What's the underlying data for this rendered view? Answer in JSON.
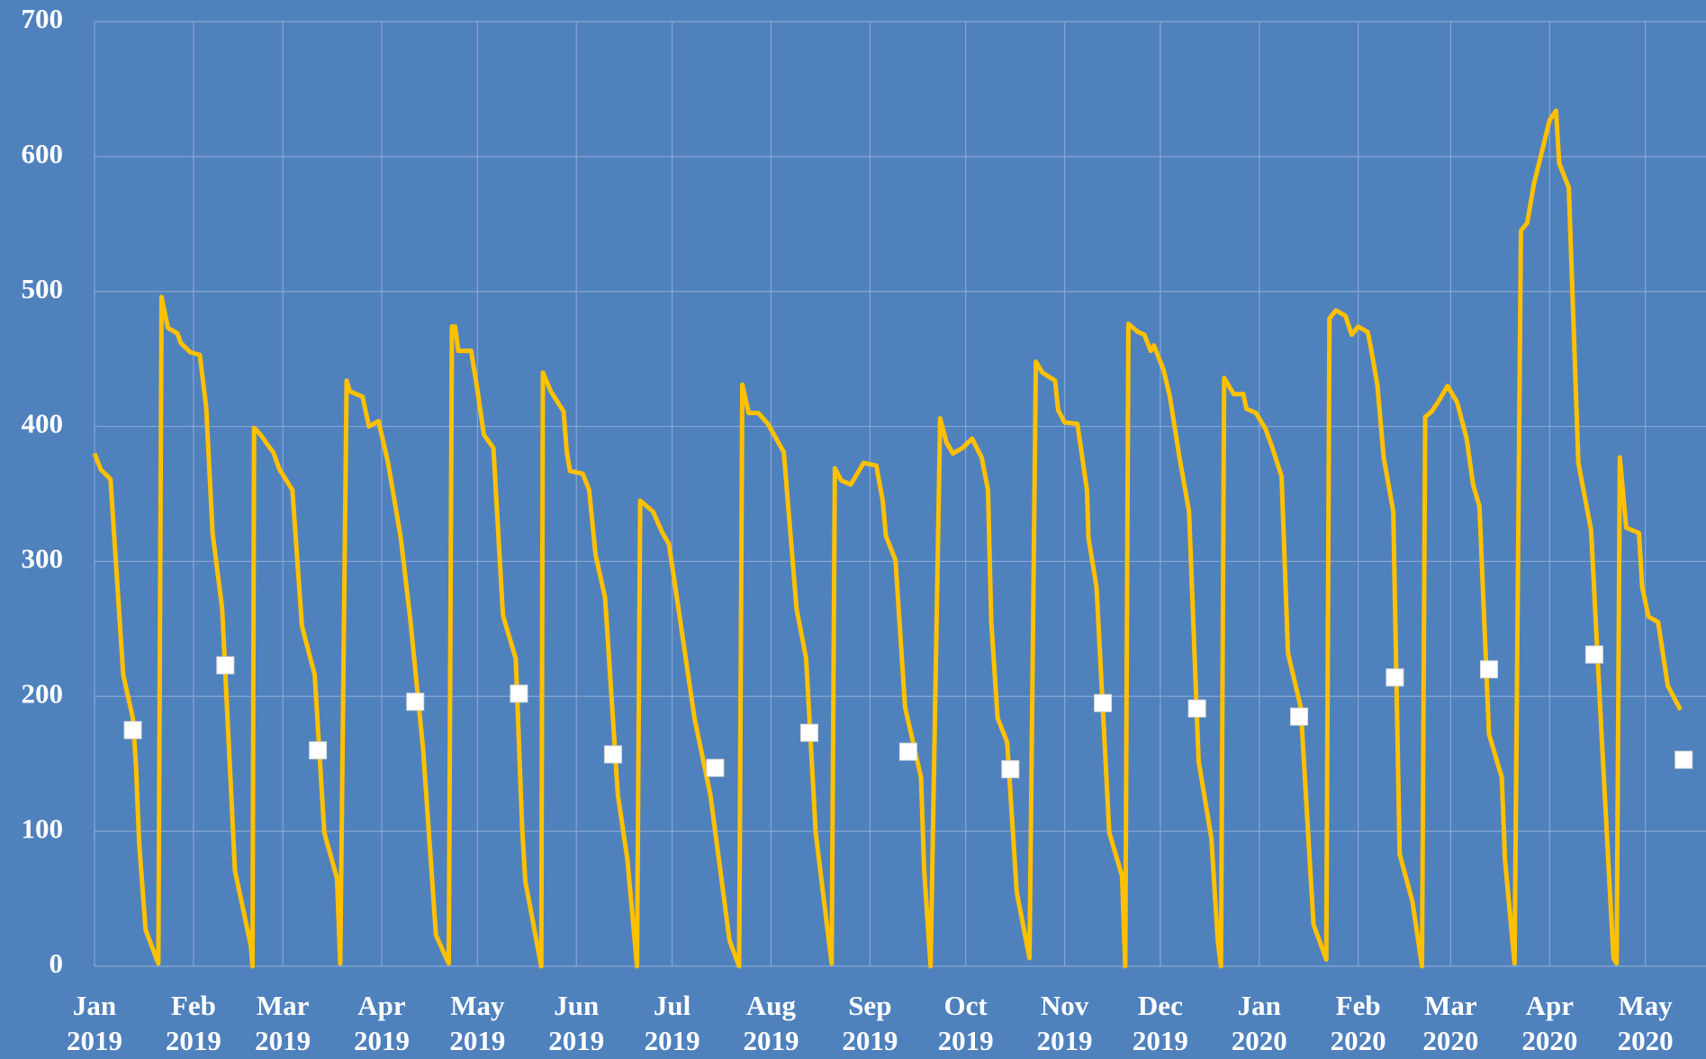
{
  "chart_data": {
    "type": "line",
    "background": "#4f81bd",
    "grid": true,
    "xlim": [
      0,
      505
    ],
    "ylim": [
      0,
      700
    ],
    "yticks": [
      0,
      100,
      200,
      300,
      400,
      500,
      600,
      700
    ],
    "xticks": [
      {
        "value": 0,
        "label": "Jan 2019"
      },
      {
        "value": 31,
        "label": "Feb 2019"
      },
      {
        "value": 59,
        "label": "Mar 2019"
      },
      {
        "value": 90,
        "label": "Apr 2019"
      },
      {
        "value": 120,
        "label": "May 2019"
      },
      {
        "value": 151,
        "label": "Jun 2019"
      },
      {
        "value": 181,
        "label": "Jul 2019"
      },
      {
        "value": 212,
        "label": "Aug 2019"
      },
      {
        "value": 243,
        "label": "Sep 2019"
      },
      {
        "value": 273,
        "label": "Oct 2019"
      },
      {
        "value": 304,
        "label": "Nov 2019"
      },
      {
        "value": 334,
        "label": "Dec 2019"
      },
      {
        "value": 365,
        "label": "Jan 2020"
      },
      {
        "value": 396,
        "label": "Feb 2020"
      },
      {
        "value": 425,
        "label": "Mar 2020"
      },
      {
        "value": 456,
        "label": "Apr 2020"
      },
      {
        "value": 486,
        "label": "May 2020"
      }
    ],
    "series": [
      {
        "style": "line",
        "color": "#ffc000",
        "x": [
          0,
          2,
          5,
          9,
          12,
          13,
          14,
          16,
          20,
          21,
          23,
          26,
          27,
          30,
          33,
          35,
          37,
          40,
          44,
          49,
          49.5,
          50,
          52,
          55,
          56,
          58,
          62,
          65,
          69,
          72,
          76,
          77,
          79,
          80,
          84,
          86,
          89,
          92,
          96,
          99,
          103,
          107,
          111,
          112,
          113,
          114,
          118,
          120,
          122,
          125,
          128,
          132,
          134,
          135,
          140,
          140.5,
          143,
          147,
          148,
          149,
          153,
          155,
          157,
          160,
          164,
          167,
          170,
          171,
          175,
          178,
          180,
          183,
          188,
          193,
          199,
          202,
          203,
          205,
          208,
          211,
          216,
          220,
          223,
          226,
          231,
          232,
          234,
          237,
          241,
          245,
          247,
          248,
          251,
          254,
          259,
          260,
          262,
          265,
          267,
          269,
          272,
          275,
          278,
          280,
          281,
          283,
          286,
          289,
          293,
          295,
          297,
          301,
          302,
          304,
          308,
          311,
          311.5,
          314,
          318,
          322,
          323,
          324,
          327,
          329,
          331,
          332,
          335,
          337,
          338,
          340,
          343,
          346,
          350,
          352,
          353,
          354,
          357,
          360,
          361,
          364,
          367,
          369,
          372,
          374,
          378,
          382,
          386,
          387,
          389,
          392,
          394,
          396,
          399,
          400,
          402,
          404,
          407,
          409,
          413,
          416,
          417,
          419,
          421,
          424,
          427,
          430,
          432,
          434,
          437,
          441,
          442,
          445,
          447,
          449,
          451,
          456,
          458,
          459,
          462,
          465,
          469,
          472,
          476,
          477,
          478,
          480,
          484,
          485,
          487,
          490,
          493,
          497
        ],
        "values": [
          380,
          368,
          361,
          216,
          184,
          148,
          91,
          27,
          2,
          496,
          473,
          469,
          462,
          455,
          453,
          414,
          321,
          265,
          71,
          15,
          0,
          399,
          394,
          384,
          381,
          368,
          353,
          252,
          216,
          99,
          65,
          2,
          434,
          426,
          422,
          400,
          404,
          373,
          317,
          256,
          160,
          23,
          2,
          474,
          474,
          456,
          456,
          427,
          394,
          384,
          260,
          228,
          103,
          63,
          0,
          440,
          426,
          411,
          381,
          367,
          365,
          353,
          305,
          273,
          127,
          79,
          0,
          345,
          337,
          321,
          313,
          265,
          184,
          127,
          19,
          0,
          431,
          410,
          410,
          402,
          381,
          265,
          228,
          99,
          2,
          369,
          360,
          357,
          373,
          371,
          345,
          319,
          301,
          192,
          140,
          71,
          0,
          406,
          388,
          380,
          384,
          391,
          377,
          353,
          256,
          184,
          166,
          55,
          6,
          448,
          440,
          434,
          412,
          403,
          402,
          353,
          317,
          281,
          99,
          67,
          0,
          476,
          470,
          468,
          456,
          460,
          442,
          422,
          407,
          377,
          337,
          152,
          95,
          19,
          0,
          436,
          424,
          424,
          413,
          410,
          398,
          385,
          363,
          232,
          192,
          31,
          5,
          480,
          486,
          482,
          468,
          474,
          470,
          458,
          431,
          377,
          337,
          83,
          48,
          0,
          407,
          411,
          418,
          430,
          418,
          391,
          357,
          341,
          172,
          140,
          79,
          2,
          545,
          551,
          579,
          627,
          634,
          595,
          577,
          373,
          323,
          184,
          6,
          2,
          377,
          325,
          321,
          281,
          259,
          255,
          208,
          190
        ]
      },
      {
        "style": "markers",
        "color": "#ffffff",
        "x": [
          12,
          41,
          70,
          100.5,
          133,
          162.5,
          194.5,
          224,
          255,
          287,
          316,
          345.5,
          377.5,
          407.5,
          437,
          470,
          498
        ],
        "values": [
          175,
          223,
          160,
          196,
          202,
          157,
          147,
          173,
          159,
          146,
          195,
          191,
          185,
          214,
          220,
          231,
          153
        ]
      }
    ]
  }
}
